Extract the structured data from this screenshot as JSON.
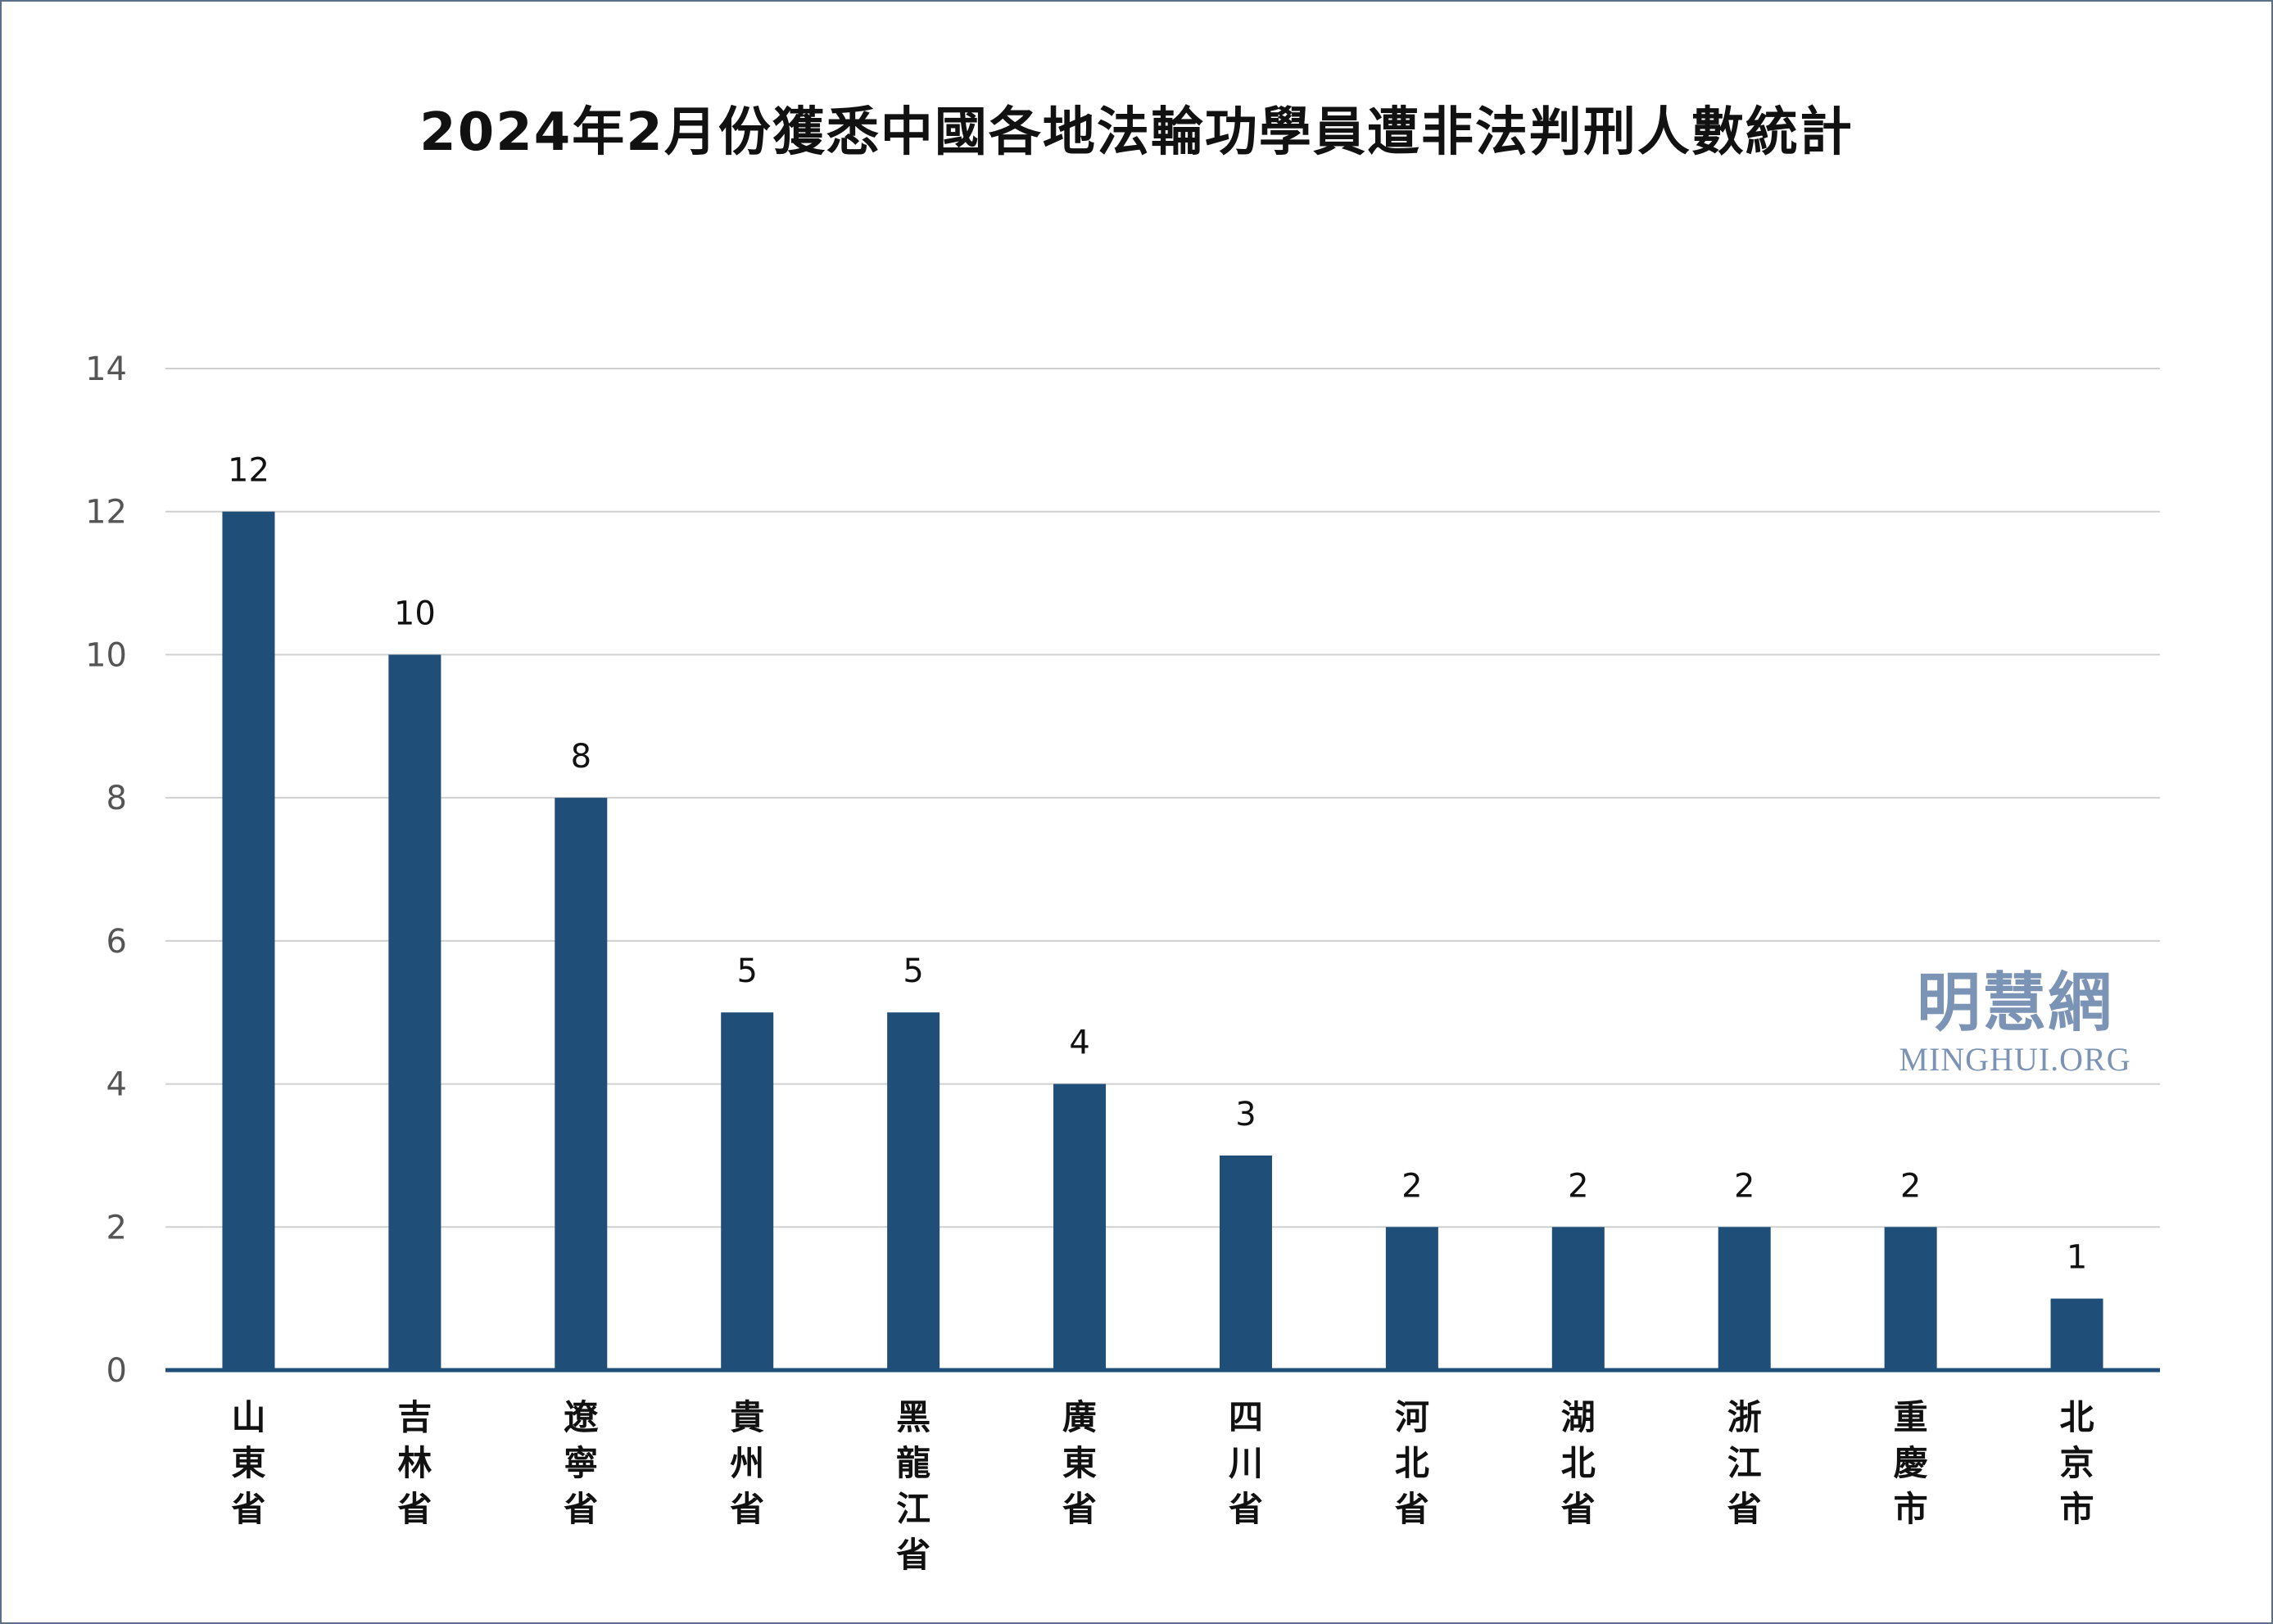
{
  "chart_data": {
    "type": "bar",
    "title": "2024年2月份獲悉中國各地法輪功學員遭非法判刑人數統計",
    "categories": [
      "山東省",
      "吉林省",
      "遼寧省",
      "貴州省",
      "黑龍江省",
      "廣東省",
      "四川省",
      "河北省",
      "湖北省",
      "浙江省",
      "重慶市",
      "北京市"
    ],
    "values": [
      12,
      10,
      8,
      5,
      5,
      4,
      3,
      2,
      2,
      2,
      2,
      1
    ],
    "ylim": [
      0,
      14
    ],
    "yticks": [
      0,
      2,
      4,
      6,
      8,
      10,
      12,
      14
    ],
    "grid": true,
    "bar_color": "#1f4e79",
    "xlabel": "",
    "ylabel": ""
  },
  "watermark": {
    "zh": "明慧網",
    "en": "MINGHUI.ORG",
    "color": "#7b93b5"
  }
}
